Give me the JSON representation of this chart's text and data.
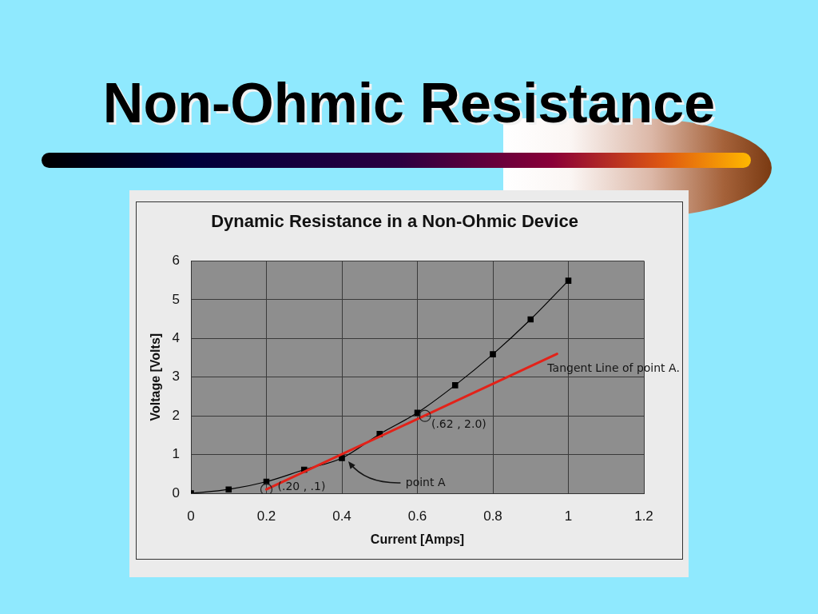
{
  "chart_data": {
    "type": "line",
    "title": "Non-Ohmic Resistance",
    "subtitle": "Dynamic Resistance in a Non-Ohmic Device",
    "xlabel": "Current [Amps]",
    "ylabel": "Voltage [Volts]",
    "x": [
      0,
      0.1,
      0.2,
      0.3,
      0.4,
      0.5,
      0.6,
      0.7,
      0.8,
      0.9,
      1.0
    ],
    "series": [
      {
        "type": "line",
        "color": "#000000",
        "marker": "square",
        "values": [
          0,
          0.1,
          0.3,
          0.61,
          0.91,
          1.53,
          2.08,
          2.79,
          3.59,
          4.49,
          5.49
        ]
      },
      {
        "type": "line",
        "color": "#e32219",
        "marker": "none",
        "x": [
          0.2,
          0.97
        ],
        "values": [
          0.1,
          3.6
        ]
      },
      {
        "type": "scatter",
        "color": "#222222",
        "marker": "circle",
        "x": [
          0.2,
          0.62
        ],
        "values": [
          0.1,
          2.0
        ]
      }
    ],
    "xlim": [
      0,
      1.2
    ],
    "xticks": [
      0,
      0.2,
      0.4,
      0.6,
      0.8,
      1,
      1.2
    ],
    "ylim": [
      0,
      6
    ],
    "yticks": [
      0,
      1,
      2,
      3,
      4,
      5,
      6
    ],
    "grid": true,
    "legend": false,
    "annotations": [
      {
        "text": "(.20 , .1)",
        "x": 0.2,
        "y": 0.1
      },
      {
        "text": "(.62 , 2.0)",
        "x": 0.62,
        "y": 2.0
      },
      "point A",
      {
        "text": "Tangent Line of point A.",
        "x": 0.97,
        "y": 3.6
      }
    ]
  }
}
